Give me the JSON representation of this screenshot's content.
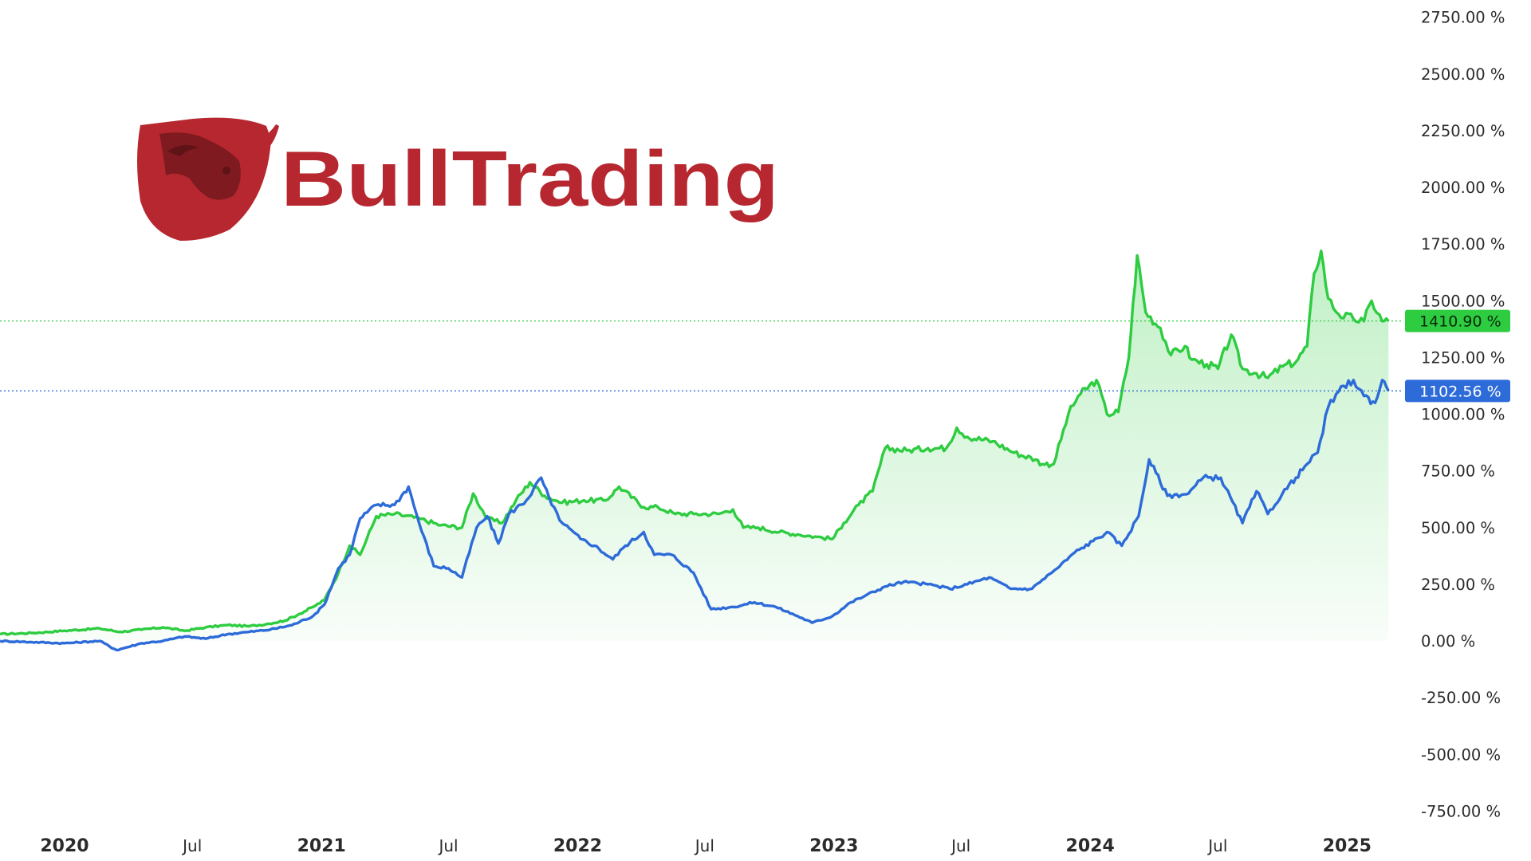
{
  "logo": {
    "wordmark": "BullTrading",
    "icon": "bull-shield-icon",
    "color": "#b6272f",
    "dark_color": "#7e1a20"
  },
  "chart_data": {
    "type": "line",
    "title": "",
    "xlabel": "",
    "ylabel": "",
    "y_unit": "%",
    "ylim": [
      -850,
      2820
    ],
    "y_ticks": [
      2750,
      2500,
      2250,
      2000,
      1750,
      1500,
      1250,
      1000,
      750,
      500,
      250,
      0,
      -250,
      -500,
      -750
    ],
    "y_tick_labels": [
      "2750.00 %",
      "2500.00 %",
      "2250.00 %",
      "2000.00 %",
      "1750.00 %",
      "1500.00 %",
      "1250.00 %",
      "1000.00 %",
      "750.00 %",
      "500.00 %",
      "250.00 %",
      "0.00 %",
      "-250.00 %",
      "-500.00 %",
      "-750.00 %"
    ],
    "x_ticks": [
      "2020-01-01",
      "2020-07-01",
      "2021-01-01",
      "2021-07-01",
      "2022-01-01",
      "2022-07-01",
      "2023-01-01",
      "2023-07-01",
      "2024-01-01",
      "2024-07-01",
      "2025-01-01"
    ],
    "x_tick_labels": [
      "2020",
      "Jul",
      "2021",
      "Jul",
      "2022",
      "Jul",
      "2023",
      "Jul",
      "2024",
      "Jul",
      "2025"
    ],
    "x_major_labels": [
      "2020",
      "2021",
      "2022",
      "2023",
      "2024",
      "2025"
    ],
    "xlim": [
      "2019-10-01",
      "2025-03-20"
    ],
    "grid": false,
    "legend": "none",
    "series": [
      {
        "color": "#2ecc40",
        "fill": true,
        "last_value_label": "1410.90 %",
        "last_value": 1410.9,
        "x": [
          "2019-10-01",
          "2019-11-15",
          "2020-01-01",
          "2020-02-20",
          "2020-03-20",
          "2020-04-20",
          "2020-05-20",
          "2020-06-20",
          "2020-07-20",
          "2020-08-20",
          "2020-09-20",
          "2020-10-15",
          "2020-11-10",
          "2020-12-01",
          "2020-12-20",
          "2021-01-05",
          "2021-01-25",
          "2021-02-10",
          "2021-02-25",
          "2021-03-20",
          "2021-04-15",
          "2021-05-20",
          "2021-06-20",
          "2021-07-20",
          "2021-08-05",
          "2021-08-25",
          "2021-09-15",
          "2021-10-05",
          "2021-10-25",
          "2021-11-15",
          "2021-12-10",
          "2022-01-10",
          "2022-02-10",
          "2022-03-01",
          "2022-04-05",
          "2022-04-25",
          "2022-05-20",
          "2022-06-15",
          "2022-07-20",
          "2022-08-10",
          "2022-08-25",
          "2022-09-15",
          "2022-10-15",
          "2022-11-10",
          "2022-12-05",
          "2022-12-30",
          "2023-01-15",
          "2023-02-05",
          "2023-02-25",
          "2023-03-15",
          "2023-04-15",
          "2023-05-15",
          "2023-06-10",
          "2023-06-25",
          "2023-07-10",
          "2023-08-15",
          "2023-09-15",
          "2023-10-15",
          "2023-10-25",
          "2023-11-10",
          "2023-12-01",
          "2023-12-15",
          "2024-01-10",
          "2024-01-25",
          "2024-02-10",
          "2024-02-25",
          "2024-03-08",
          "2024-03-20",
          "2024-04-10",
          "2024-04-25",
          "2024-05-15",
          "2024-05-25",
          "2024-06-15",
          "2024-07-01",
          "2024-07-20",
          "2024-08-05",
          "2024-08-25",
          "2024-09-10",
          "2024-10-01",
          "2024-10-20",
          "2024-11-05",
          "2024-11-15",
          "2024-11-25",
          "2024-12-05",
          "2024-12-20",
          "2025-01-10",
          "2025-01-25",
          "2025-02-05",
          "2025-02-20",
          "2025-03-01"
        ],
        "y": [
          30,
          35,
          45,
          55,
          40,
          50,
          60,
          45,
          60,
          70,
          65,
          75,
          90,
          120,
          150,
          180,
          300,
          420,
          380,
          550,
          560,
          540,
          510,
          500,
          650,
          540,
          520,
          620,
          700,
          640,
          610,
          620,
          620,
          680,
          590,
          590,
          560,
          560,
          560,
          580,
          500,
          500,
          480,
          470,
          460,
          450,
          520,
          600,
          660,
          850,
          840,
          850,
          850,
          940,
          900,
          880,
          830,
          800,
          780,
          780,
          1000,
          1080,
          1150,
          1000,
          1010,
          1250,
          1700,
          1450,
          1380,
          1260,
          1300,
          1240,
          1220,
          1200,
          1350,
          1200,
          1180,
          1160,
          1210,
          1230,
          1300,
          1620,
          1720,
          1510,
          1440,
          1420,
          1410,
          1500,
          1410,
          1410.9
        ]
      },
      {
        "color": "#2d6bd9",
        "fill": false,
        "last_value_label": "1102.56 %",
        "last_value": 1102.56,
        "x": [
          "2019-10-01",
          "2019-11-15",
          "2020-01-01",
          "2020-02-20",
          "2020-03-15",
          "2020-04-20",
          "2020-05-20",
          "2020-06-20",
          "2020-07-20",
          "2020-08-20",
          "2020-09-20",
          "2020-10-20",
          "2020-11-20",
          "2020-12-20",
          "2021-01-05",
          "2021-01-25",
          "2021-02-10",
          "2021-02-25",
          "2021-03-20",
          "2021-04-15",
          "2021-05-05",
          "2021-05-20",
          "2021-06-10",
          "2021-07-01",
          "2021-07-20",
          "2021-08-10",
          "2021-08-25",
          "2021-09-10",
          "2021-09-25",
          "2021-10-20",
          "2021-11-10",
          "2021-11-25",
          "2021-12-10",
          "2022-01-05",
          "2022-01-25",
          "2022-02-20",
          "2022-03-10",
          "2022-04-05",
          "2022-04-20",
          "2022-05-15",
          "2022-06-15",
          "2022-07-10",
          "2022-08-10",
          "2022-09-10",
          "2022-10-10",
          "2022-11-10",
          "2022-12-01",
          "2022-12-30",
          "2023-01-25",
          "2023-02-15",
          "2023-03-15",
          "2023-04-10",
          "2023-05-15",
          "2023-06-15",
          "2023-07-10",
          "2023-08-10",
          "2023-09-10",
          "2023-10-10",
          "2023-10-25",
          "2023-11-15",
          "2023-12-10",
          "2024-01-05",
          "2024-01-25",
          "2024-02-15",
          "2024-03-10",
          "2024-03-25",
          "2024-04-20",
          "2024-05-20",
          "2024-06-10",
          "2024-07-05",
          "2024-08-05",
          "2024-08-25",
          "2024-09-10",
          "2024-10-01",
          "2024-10-20",
          "2024-11-05",
          "2024-11-20",
          "2024-12-05",
          "2024-12-20",
          "2025-01-10",
          "2025-01-25",
          "2025-02-10",
          "2025-02-20",
          "2025-03-01"
        ],
        "y": [
          0,
          -5,
          -10,
          0,
          -40,
          -10,
          0,
          20,
          10,
          30,
          40,
          50,
          70,
          110,
          160,
          320,
          380,
          540,
          600,
          600,
          680,
          520,
          330,
          320,
          280,
          500,
          550,
          430,
          560,
          620,
          720,
          600,
          520,
          450,
          420,
          360,
          420,
          480,
          380,
          380,
          300,
          140,
          150,
          170,
          150,
          110,
          80,
          110,
          170,
          200,
          240,
          260,
          250,
          230,
          250,
          280,
          230,
          230,
          270,
          320,
          390,
          440,
          480,
          420,
          550,
          800,
          640,
          650,
          720,
          720,
          520,
          660,
          560,
          650,
          720,
          780,
          830,
          1030,
          1100,
          1150,
          1080,
          1050,
          1150,
          1102.56
        ]
      }
    ]
  }
}
